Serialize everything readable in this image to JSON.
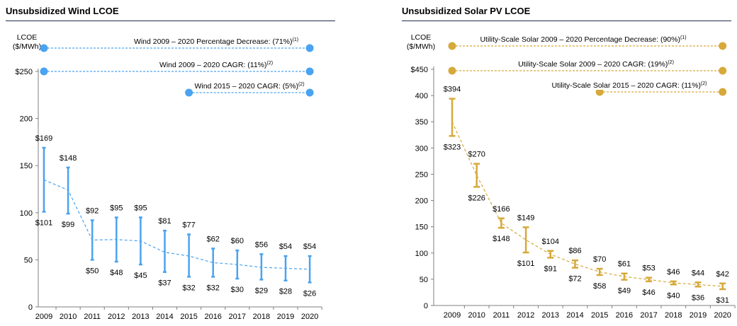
{
  "chart_data": [
    {
      "type": "range",
      "title": "Unsubsidized Wind LCOE",
      "ylabel": "LCOE\n($/MWh)",
      "x": [
        "2009",
        "2010",
        "2011",
        "2012",
        "2013",
        "2014",
        "2015",
        "2016",
        "2017",
        "2018",
        "2019",
        "2020"
      ],
      "high": [
        169,
        148,
        92,
        95,
        95,
        81,
        77,
        62,
        60,
        56,
        54,
        54
      ],
      "low": [
        101,
        99,
        50,
        48,
        45,
        37,
        32,
        32,
        30,
        29,
        28,
        26
      ],
      "high_labels": [
        "$169",
        "$148",
        "$92",
        "$95",
        "$95",
        "$81",
        "$77",
        "$62",
        "$60",
        "$56",
        "$54",
        "$54"
      ],
      "low_labels": [
        "$101",
        "$99",
        "$50",
        "$48",
        "$45",
        "$37",
        "$32",
        "$32",
        "$30",
        "$29",
        "$28",
        "$26"
      ],
      "trend": [
        135,
        124,
        71,
        71.5,
        70,
        58,
        54,
        47,
        45,
        42,
        41,
        40
      ],
      "ylim": [
        0,
        250
      ],
      "yticks": [
        0,
        50,
        100,
        150,
        200,
        250
      ],
      "ytick_labels": [
        "0",
        "50",
        "100",
        "150",
        "200",
        "$250"
      ],
      "color": "#4aa3f0",
      "annotations": [
        {
          "text": "Wind 2009 – 2020 Percentage Decrease: (71%)",
          "sup": "(1)",
          "from": "2009",
          "to": "2020"
        },
        {
          "text": "Wind 2009 – 2020 CAGR: (11%)",
          "sup": "(2)",
          "from": "2009",
          "to": "2020"
        },
        {
          "text": "Wind 2015 – 2020 CAGR: (5%)",
          "sup": "(2)",
          "from": "2015",
          "to": "2020"
        }
      ]
    },
    {
      "type": "range",
      "title": "Unsubsidized Solar PV LCOE",
      "ylabel": "LCOE\n($/MWh)",
      "x": [
        "2009",
        "2010",
        "2011",
        "2012",
        "2013",
        "2014",
        "2015",
        "2016",
        "2017",
        "2018",
        "2019",
        "2020"
      ],
      "high": [
        394,
        270,
        166,
        149,
        104,
        86,
        70,
        61,
        53,
        46,
        44,
        42
      ],
      "low": [
        323,
        226,
        148,
        101,
        91,
        72,
        58,
        49,
        46,
        40,
        36,
        31
      ],
      "high_labels": [
        "$394",
        "$270",
        "$166",
        "$149",
        "$104",
        "$86",
        "$70",
        "$61",
        "$53",
        "$46",
        "$44",
        "$42"
      ],
      "low_labels": [
        "$323",
        "$226",
        "$148",
        "$101",
        "$91",
        "$72",
        "$58",
        "$49",
        "$46",
        "$40",
        "$36",
        "$31"
      ],
      "trend": [
        350,
        248,
        157,
        125,
        97.5,
        79,
        64,
        55,
        49.5,
        43,
        40,
        36.5
      ],
      "ylim": [
        0,
        450
      ],
      "yticks": [
        0,
        50,
        100,
        150,
        200,
        250,
        300,
        350,
        400,
        450
      ],
      "ytick_labels": [
        "0",
        "50",
        "100",
        "150",
        "200",
        "250",
        "300",
        "350",
        "400",
        "$450"
      ],
      "color": "#d6a93a",
      "annotations": [
        {
          "text": "Utility-Scale Solar 2009 – 2020 Percentage Decrease: (90%)",
          "sup": "(1)",
          "from": "2009",
          "to": "2020"
        },
        {
          "text": "Utility-Scale Solar 2009 – 2020 CAGR: (19%)",
          "sup": "(2)",
          "from": "2009",
          "to": "2020"
        },
        {
          "text": "Utility-Scale Solar 2015 – 2020 CAGR: (11%)",
          "sup": "(2)",
          "from": "2015",
          "to": "2020"
        }
      ]
    }
  ]
}
